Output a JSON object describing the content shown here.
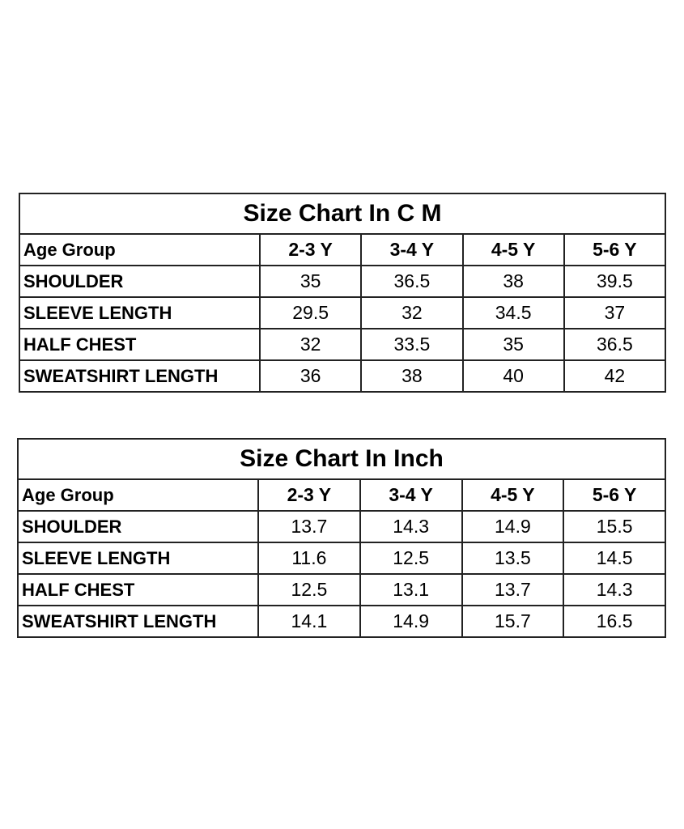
{
  "tables": [
    {
      "title": "Size Chart In C M",
      "headers": [
        "Age Group",
        "2-3 Y",
        "3-4 Y",
        "4-5 Y",
        "5-6 Y"
      ],
      "rows": [
        {
          "label": "SHOULDER",
          "values": [
            "35",
            "36.5",
            "38",
            "39.5"
          ]
        },
        {
          "label": "SLEEVE LENGTH",
          "values": [
            "29.5",
            "32",
            "34.5",
            "37"
          ]
        },
        {
          "label": "HALF CHEST",
          "values": [
            "32",
            "33.5",
            "35",
            "36.5"
          ]
        },
        {
          "label": "SWEATSHIRT  LENGTH",
          "values": [
            "36",
            "38",
            "40",
            "42"
          ]
        }
      ]
    },
    {
      "title": "Size Chart In Inch",
      "headers": [
        "Age Group",
        "2-3 Y",
        "3-4 Y",
        "4-5 Y",
        "5-6 Y"
      ],
      "rows": [
        {
          "label": "SHOULDER",
          "values": [
            "13.7",
            "14.3",
            "14.9",
            "15.5"
          ]
        },
        {
          "label": "SLEEVE LENGTH",
          "values": [
            "11.6",
            "12.5",
            "13.5",
            "14.5"
          ]
        },
        {
          "label": "HALF CHEST",
          "values": [
            "12.5",
            "13.1",
            "13.7",
            "14.3"
          ]
        },
        {
          "label": "SWEATSHIRT  LENGTH",
          "values": [
            "14.1",
            "14.9",
            "15.7",
            "16.5"
          ]
        }
      ]
    }
  ]
}
